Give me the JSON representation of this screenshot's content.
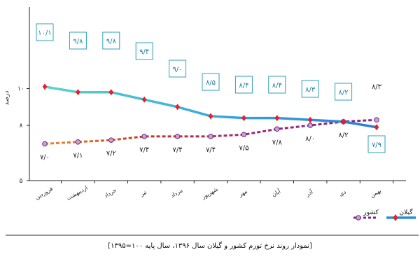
{
  "chart_data": {
    "type": "line",
    "title": "[نمودار روند نرخ تورم کشور و گیلان سال ۱۳۹۶، سال پایه ۱۰۰=۱۳۹۵]",
    "ylabel": "درصد",
    "ylim": [
      5,
      12
    ],
    "y_ticks": [
      "۵",
      "۸",
      "۱۰"
    ],
    "y_tick_values": [
      5,
      8,
      10
    ],
    "grid": false,
    "legend_position": "bottom-right",
    "categories": [
      "فروردین",
      "اردیبهشت",
      "خرداد",
      "تیر",
      "مرداد",
      "شهریور",
      "مهر",
      "آبان",
      "آذر",
      "دی",
      "بهمن"
    ],
    "series": [
      {
        "name": "گیلان",
        "color": "#4dc7d6",
        "marker_color": "#e8202a",
        "values": [
          10.1,
          9.8,
          9.8,
          9.4,
          9.0,
          8.5,
          8.4,
          8.4,
          8.3,
          8.2,
          7.9
        ],
        "labels": [
          "۱۰/۱",
          "۹/۸",
          "۹/۸",
          "۹/۴",
          "۹/۰",
          "۸/۵",
          "۸/۴",
          "۸/۴",
          "۸/۳",
          "۸/۲",
          "۷/۹"
        ]
      },
      {
        "name": "کشور",
        "color": "#7a2a86",
        "marker_color": "#c7a3cf",
        "values": [
          7.0,
          7.1,
          7.2,
          7.4,
          7.4,
          7.4,
          7.5,
          7.8,
          8.0,
          8.2,
          8.3
        ],
        "labels": [
          "۷/۰",
          "۷/۱",
          "۷/۲",
          "۷/۴",
          "۷/۴",
          "۷/۴",
          "۷/۵",
          "۷/۸",
          "۸/۰",
          "۸/۲",
          "۸/۳"
        ]
      }
    ]
  }
}
